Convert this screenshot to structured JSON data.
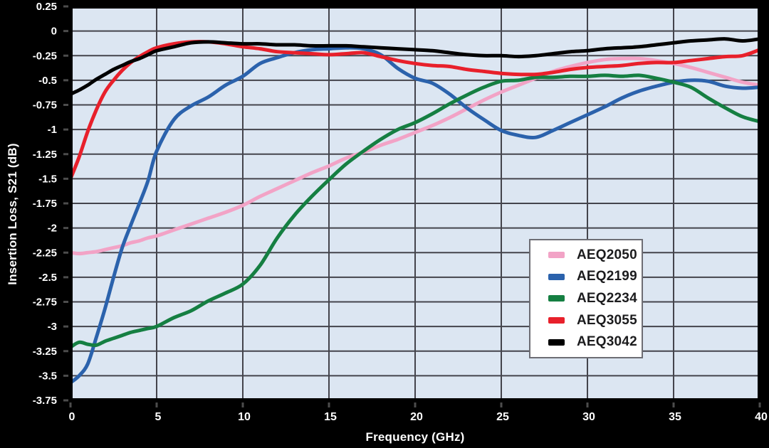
{
  "colors": {
    "page_background": "#000000",
    "plot_background": "#dce6f2",
    "grid_line": "#44444c",
    "plot_border": "#000000",
    "tick_mark": "#4c4c4c",
    "tick_label": "#ffffff",
    "legend_background": "#ffffff",
    "legend_border": "#6d6d74"
  },
  "chart_data": {
    "type": "line",
    "title": "",
    "xlabel": "Frequency (GHz)",
    "ylabel": "Insertion Loss, S21 (dB)",
    "xlim": [
      0,
      40
    ],
    "ylim": [
      -3.75,
      0.25
    ],
    "grid": true,
    "legend_position": "inside-right",
    "x_ticks": [
      0,
      5,
      10,
      15,
      20,
      25,
      30,
      35,
      40
    ],
    "x_tick_labels": [
      "0",
      "5",
      "10",
      "15",
      "20",
      "25",
      "30",
      "35",
      "40"
    ],
    "y_ticks": [
      0.25,
      0,
      -0.25,
      -0.5,
      -0.75,
      -1,
      -1.25,
      -1.5,
      -1.75,
      -2,
      -2.25,
      -2.5,
      -2.75,
      -3,
      -3.25,
      -3.5,
      -3.75
    ],
    "y_tick_labels": [
      "0.25",
      "0",
      "-0.25",
      "-0.5",
      "-0.75",
      "-1",
      "-1.25",
      "-1.5",
      "-1.75",
      "-2",
      "-2.25",
      "-2.5",
      "-2.75",
      "-3",
      "-3.25",
      "-3.5",
      "-3.75"
    ],
    "x": [
      0,
      0.5,
      1,
      1.5,
      2,
      2.5,
      3,
      3.5,
      4,
      4.5,
      5,
      6,
      7,
      8,
      9,
      10,
      11,
      12,
      13,
      14,
      15,
      16,
      17,
      18,
      19,
      20,
      21,
      22,
      23,
      24,
      25,
      26,
      27,
      28,
      29,
      30,
      31,
      32,
      33,
      34,
      35,
      36,
      37,
      38,
      39,
      40
    ],
    "series": [
      {
        "name": "AEQ2050",
        "color": "#f2a3c6",
        "values": [
          -2.25,
          -2.26,
          -2.25,
          -2.24,
          -2.22,
          -2.2,
          -2.18,
          -2.15,
          -2.13,
          -2.1,
          -2.08,
          -2.02,
          -1.96,
          -1.9,
          -1.84,
          -1.77,
          -1.68,
          -1.6,
          -1.52,
          -1.44,
          -1.37,
          -1.29,
          -1.23,
          -1.16,
          -1.1,
          -1.03,
          -0.96,
          -0.88,
          -0.79,
          -0.7,
          -0.62,
          -0.55,
          -0.48,
          -0.41,
          -0.36,
          -0.32,
          -0.29,
          -0.28,
          -0.28,
          -0.3,
          -0.33,
          -0.37,
          -0.42,
          -0.47,
          -0.52,
          -0.55
        ]
      },
      {
        "name": "AEQ2199",
        "color": "#2b62ac",
        "values": [
          -3.57,
          -3.5,
          -3.38,
          -3.11,
          -2.82,
          -2.5,
          -2.2,
          -1.97,
          -1.75,
          -1.52,
          -1.22,
          -0.9,
          -0.76,
          -0.67,
          -0.55,
          -0.46,
          -0.33,
          -0.27,
          -0.22,
          -0.19,
          -0.18,
          -0.17,
          -0.18,
          -0.24,
          -0.38,
          -0.48,
          -0.53,
          -0.64,
          -0.78,
          -0.9,
          -1.01,
          -1.06,
          -1.08,
          -1.01,
          -0.93,
          -0.85,
          -0.77,
          -0.68,
          -0.61,
          -0.56,
          -0.52,
          -0.5,
          -0.51,
          -0.56,
          -0.58,
          -0.57
        ]
      },
      {
        "name": "AEQ2234",
        "color": "#157f42",
        "values": [
          -3.21,
          -3.16,
          -3.18,
          -3.19,
          -3.15,
          -3.12,
          -3.09,
          -3.06,
          -3.04,
          -3.02,
          -3.0,
          -2.91,
          -2.84,
          -2.74,
          -2.66,
          -2.57,
          -2.38,
          -2.1,
          -1.87,
          -1.68,
          -1.51,
          -1.35,
          -1.22,
          -1.1,
          -1.0,
          -0.93,
          -0.84,
          -0.74,
          -0.65,
          -0.57,
          -0.51,
          -0.5,
          -0.47,
          -0.47,
          -0.46,
          -0.46,
          -0.45,
          -0.46,
          -0.45,
          -0.48,
          -0.52,
          -0.57,
          -0.68,
          -0.78,
          -0.87,
          -0.92
        ]
      },
      {
        "name": "AEQ3055",
        "color": "#e8202b",
        "values": [
          -1.5,
          -1.28,
          -1.02,
          -0.8,
          -0.62,
          -0.5,
          -0.4,
          -0.32,
          -0.26,
          -0.21,
          -0.17,
          -0.13,
          -0.11,
          -0.11,
          -0.13,
          -0.16,
          -0.18,
          -0.21,
          -0.22,
          -0.23,
          -0.24,
          -0.23,
          -0.22,
          -0.26,
          -0.3,
          -0.33,
          -0.35,
          -0.36,
          -0.39,
          -0.41,
          -0.43,
          -0.44,
          -0.44,
          -0.42,
          -0.39,
          -0.37,
          -0.36,
          -0.35,
          -0.33,
          -0.32,
          -0.32,
          -0.3,
          -0.28,
          -0.26,
          -0.25,
          -0.19
        ]
      },
      {
        "name": "AEQ3042",
        "color": "#000000",
        "values": [
          -0.64,
          -0.6,
          -0.55,
          -0.49,
          -0.44,
          -0.39,
          -0.35,
          -0.31,
          -0.28,
          -0.24,
          -0.2,
          -0.16,
          -0.12,
          -0.11,
          -0.12,
          -0.13,
          -0.13,
          -0.14,
          -0.14,
          -0.15,
          -0.15,
          -0.15,
          -0.16,
          -0.17,
          -0.18,
          -0.19,
          -0.2,
          -0.22,
          -0.24,
          -0.25,
          -0.25,
          -0.26,
          -0.25,
          -0.23,
          -0.21,
          -0.2,
          -0.18,
          -0.17,
          -0.16,
          -0.14,
          -0.12,
          -0.1,
          -0.09,
          -0.08,
          -0.1,
          -0.08
        ]
      }
    ]
  }
}
